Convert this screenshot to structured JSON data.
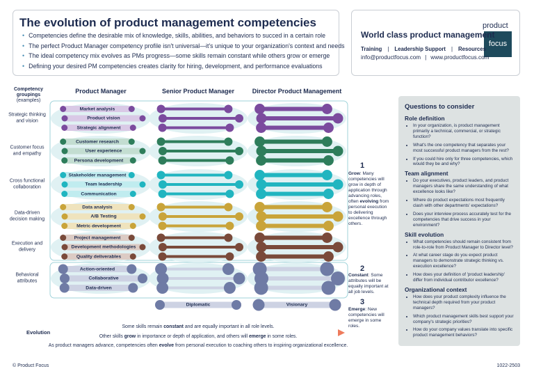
{
  "header": {
    "title": "The evolution of product management competencies",
    "bullets": [
      "Competencies define the desirable mix of knowledge, skills, abilities, and behaviors to succed in a certain role",
      "The perfect Product Manager competency profile isn't universal—it's unique to your organization's context and needs",
      "The ideal competency mix evolves as PMs progress—some skills remain constant while others  grow or emerge",
      "Defining your desired PM competencies creates clarity for hiring, development, and performance evaluations"
    ]
  },
  "brand": {
    "title": "World class product management",
    "links": [
      "Training",
      "Leadership Support",
      "Resources"
    ],
    "contact": [
      "info@productfocus.com",
      "www.productfocus.com"
    ],
    "logo": [
      "product",
      "focus"
    ]
  },
  "grid": {
    "groupings_header": "Competency groupings",
    "groupings_sub": "(examples)",
    "columns": [
      "Product Manager",
      "Senior Product Manager",
      "Director Product Management"
    ],
    "groups": [
      {
        "label": "Strategic thinking and vision",
        "skills": [
          "Market analysis",
          "Product vision",
          "Strategic alignment"
        ]
      },
      {
        "label": "Customer focus and empathy",
        "skills": [
          "Customer research",
          "User experience",
          "Persona development"
        ]
      },
      {
        "label": "Cross functional collaboration",
        "skills": [
          "Stakeholder management",
          "Team leadership",
          "Communication"
        ]
      },
      {
        "label": "Data-driven decision making",
        "skills": [
          "Data analysis",
          "A/B Testing",
          "Metric development"
        ]
      },
      {
        "label": "Execution and delivery",
        "skills": [
          "Project management",
          "Development methodologies",
          "Quality deliverables"
        ]
      },
      {
        "label": "Behavioral attributes",
        "skills": [
          "Action-oriented",
          "Collaborative",
          "Data-driven"
        ]
      }
    ],
    "emerging": {
      "senior": "Diplomatic",
      "director": "Visionary"
    }
  },
  "notes": [
    {
      "number": "1",
      "parts": [
        "Grow",
        ": Many competencies will grow in depth of application through advancing roles, often ",
        "evolving",
        " from personal execution to delivering excellence through others."
      ]
    },
    {
      "number": "2",
      "parts": [
        "Constant",
        ": Some attributes will be equally important at all job levels."
      ]
    },
    {
      "number": "3",
      "parts": [
        "Emerge",
        ": New competencies will emerge in some roles."
      ]
    }
  ],
  "evolution": {
    "label": "Evolution",
    "lines": [
      [
        "Some skills remain ",
        "constant",
        " and are equally important in all role levels."
      ],
      [
        "Other skills ",
        "grow",
        " in importance or depth of application, and others will ",
        "emerge",
        " in some roles."
      ],
      [
        "As product managers advance, competencies often ",
        "evolve",
        " from personal execution to coaching others to inspiring organizational excellence."
      ]
    ]
  },
  "questions": {
    "title": "Questions to consider",
    "sections": [
      {
        "heading": "Role definition",
        "items": [
          "In your organization, is product management primarily a technical, commercial, or strategic function?",
          "What's the one competency that separates your most successful product managers from the rest?",
          "If you could hire only for three competencies, which would they be and why?"
        ]
      },
      {
        "heading": "Team alignment",
        "items": [
          "Do your executives, product leaders, and product managers share the same understanding of what excellence looks like?",
          "Where do product expectations most frequently clash with other departments' expectations?",
          "Does your interview process accurately test for the competencies that drive success in your environment?"
        ]
      },
      {
        "heading": "Skill evolution",
        "items": [
          "What competencies should remain consistent from role-to-role from Product Manager to Director level?",
          "At what career stage do you expect product managers to demonstrate strategic thinking vs. execution excellence?",
          "How does your definition of 'product leadership' differ from individual contributor excellence?"
        ]
      },
      {
        "heading": "Organizational context",
        "items": [
          "How does your product complexity influence the technical depth required from your product managers?",
          "Which product management skills best support your company's strategic priorities?",
          "How do your company values translate into specific product management behaviors?"
        ]
      }
    ]
  },
  "footer": {
    "copyright": "© Product Focus",
    "code": "1022-2503"
  }
}
